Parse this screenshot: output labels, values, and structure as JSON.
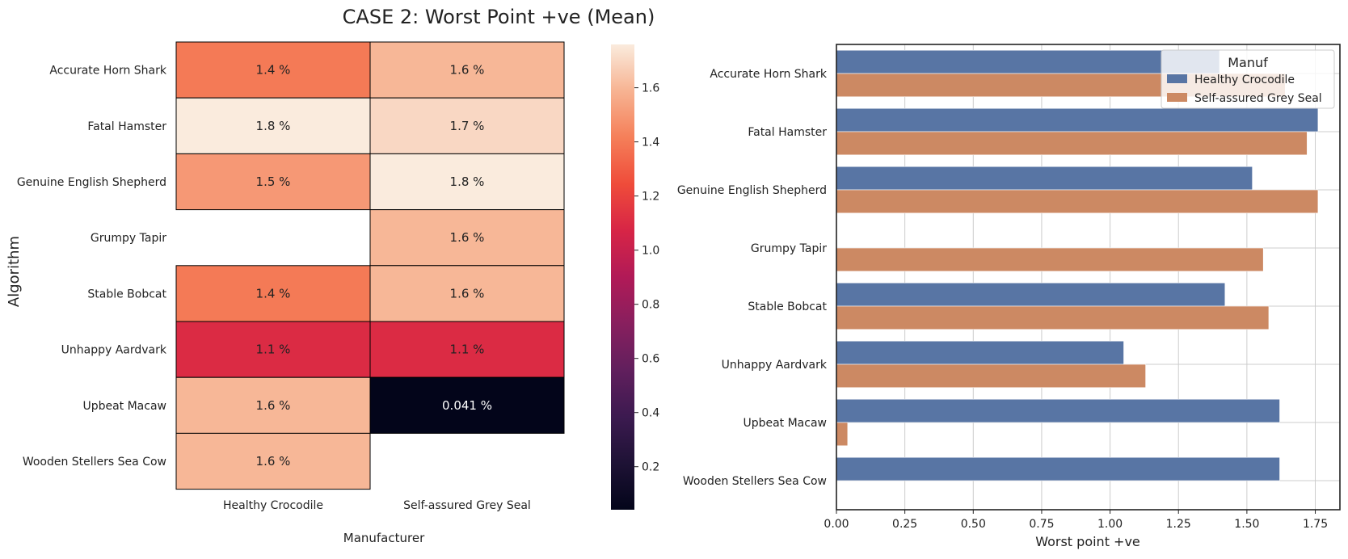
{
  "figure": {
    "title": "CASE 2: Worst Point +ve (Mean)"
  },
  "chart_data": [
    {
      "type": "heatmap",
      "ylabel": "Algorithm",
      "xlabel": "Manufacturer",
      "rows": [
        "Accurate Horn Shark",
        "Fatal Hamster",
        "Genuine English Shepherd",
        "Grumpy Tapir",
        "Stable Bobcat",
        "Unhappy Aardvark",
        "Upbeat Macaw",
        "Wooden Stellers Sea Cow"
      ],
      "columns": [
        "Healthy Crocodile",
        "Self-assured Grey Seal"
      ],
      "values": [
        [
          1.4,
          1.6
        ],
        [
          1.8,
          1.7
        ],
        [
          1.5,
          1.8
        ],
        [
          null,
          1.6
        ],
        [
          1.4,
          1.6
        ],
        [
          1.1,
          1.1
        ],
        [
          1.6,
          0.041
        ],
        [
          1.6,
          null
        ]
      ],
      "cell_labels": [
        [
          "1.4 %",
          "1.6 %"
        ],
        [
          "1.8 %",
          "1.7 %"
        ],
        [
          "1.5 %",
          "1.8 %"
        ],
        [
          "",
          "1.6 %"
        ],
        [
          "1.4 %",
          "1.6 %"
        ],
        [
          "1.1 %",
          "1.1 %"
        ],
        [
          "1.6 %",
          "0.041 %"
        ],
        [
          "1.6 %",
          ""
        ]
      ],
      "colorbar": {
        "min": 0.041,
        "max": 1.76,
        "ticks": [
          "0.2",
          "0.4",
          "0.6",
          "0.8",
          "1.0",
          "1.2",
          "1.4",
          "1.6"
        ],
        "tick_values": [
          0.2,
          0.4,
          0.6,
          0.8,
          1.0,
          1.2,
          1.4,
          1.6
        ],
        "colormap": "rocket"
      }
    },
    {
      "type": "bar",
      "orientation": "horizontal",
      "xlabel": "Worst point +ve",
      "categories": [
        "Accurate Horn Shark",
        "Fatal Hamster",
        "Genuine English Shepherd",
        "Grumpy Tapir",
        "Stable Bobcat",
        "Unhappy Aardvark",
        "Upbeat Macaw",
        "Wooden Stellers Sea Cow"
      ],
      "series": [
        {
          "name": "Healthy Crocodile",
          "color": "#5875a4",
          "values": [
            1.4,
            1.76,
            1.52,
            null,
            1.42,
            1.05,
            1.62,
            1.62
          ]
        },
        {
          "name": "Self-assured Grey Seal",
          "color": "#cc8963",
          "values": [
            1.64,
            1.72,
            1.76,
            1.56,
            1.58,
            1.13,
            0.041,
            null
          ]
        }
      ],
      "xlim": [
        0,
        1.84
      ],
      "xticks": [
        "0.00",
        "0.25",
        "0.50",
        "0.75",
        "1.00",
        "1.25",
        "1.50",
        "1.75"
      ],
      "xtick_values": [
        0,
        0.25,
        0.5,
        0.75,
        1.0,
        1.25,
        1.5,
        1.75
      ],
      "grid": true,
      "legend": {
        "title": "Manuf",
        "placement": "top-right"
      }
    }
  ]
}
